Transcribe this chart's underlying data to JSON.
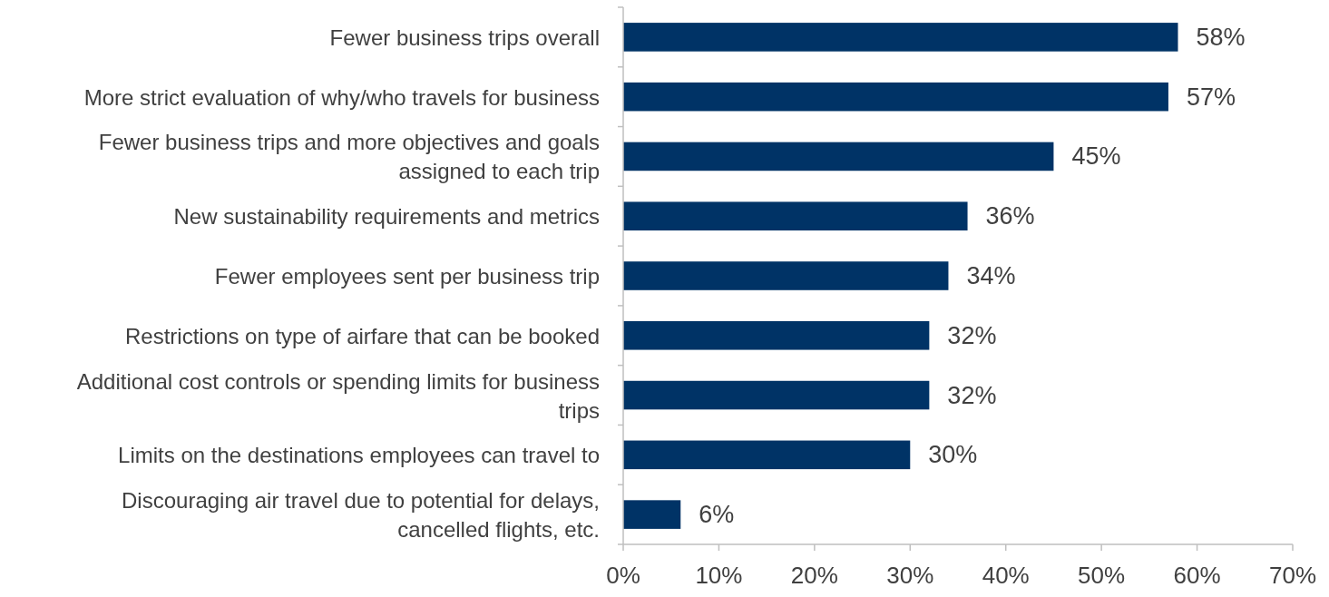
{
  "chart_data": {
    "type": "bar",
    "orientation": "horizontal",
    "categories": [
      "Fewer business trips overall",
      "More strict evaluation of why/who travels for business",
      "Fewer business trips and more objectives and goals assigned to each trip",
      "New sustainability requirements and metrics",
      "Fewer employees sent per business trip",
      "Restrictions on type of airfare that can be booked",
      "Additional cost controls or spending limits for business trips",
      "Limits on the destinations employees can travel to",
      "Discouraging air travel due to potential for delays, cancelled flights, etc."
    ],
    "values": [
      58,
      57,
      45,
      36,
      34,
      32,
      32,
      30,
      6
    ],
    "color": "#003366",
    "xlim": [
      0,
      70
    ],
    "xticks": [
      {
        "value": 0,
        "label": "0%"
      },
      {
        "value": 10,
        "label": "10%"
      },
      {
        "value": 20,
        "label": "20%"
      },
      {
        "value": 30,
        "label": "30%"
      },
      {
        "value": 40,
        "label": "40%"
      },
      {
        "value": 50,
        "label": "50%"
      },
      {
        "value": 60,
        "label": "60%"
      },
      {
        "value": 70,
        "label": "70%"
      }
    ],
    "value_labels": [
      "58%",
      "57%",
      "45%",
      "36%",
      "34%",
      "32%",
      "32%",
      "30%",
      "6%"
    ],
    "grid": false
  }
}
